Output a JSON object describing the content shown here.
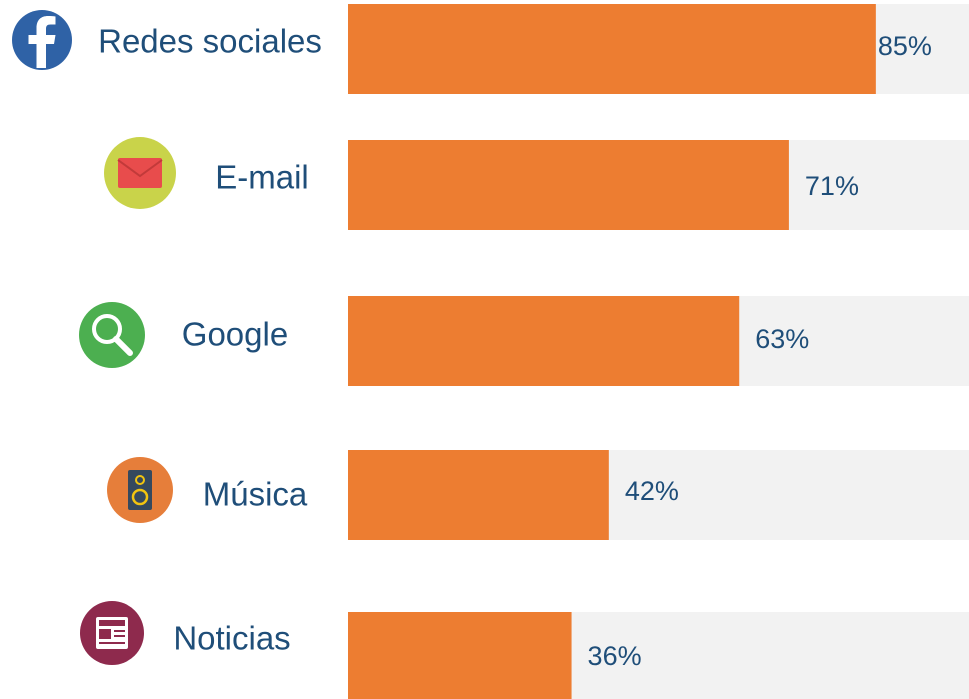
{
  "chart_data": {
    "type": "bar",
    "orientation": "horizontal",
    "categories": [
      "Redes sociales",
      "E-mail",
      "Google",
      "Música",
      "Noticias"
    ],
    "values": [
      85,
      71,
      63,
      42,
      36
    ],
    "value_labels": [
      "85%",
      "71%",
      "63%",
      "42%",
      "36%"
    ],
    "color": "#ed7d31",
    "track_color": "#f2f2f2",
    "xlim": [
      0,
      100
    ]
  }
}
